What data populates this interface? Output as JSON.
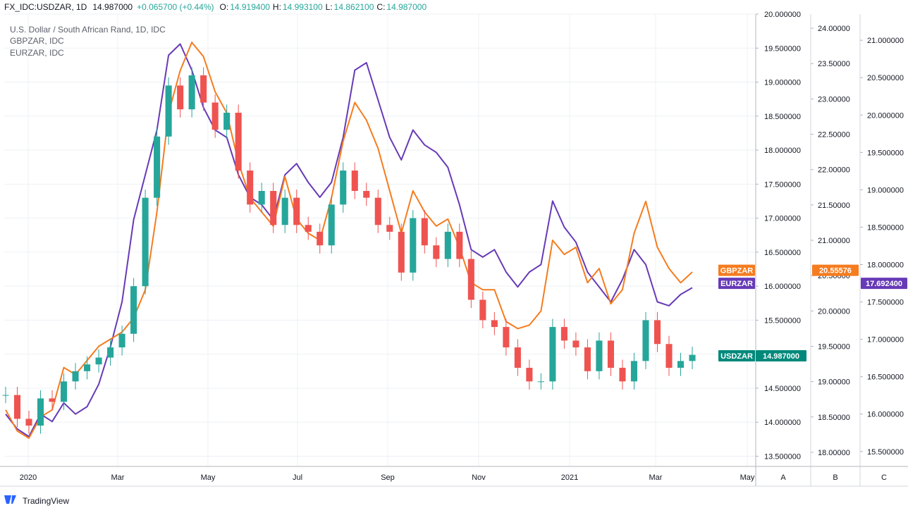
{
  "header": {
    "symbol": "FX_IDC:USDZAR, 1D",
    "last": "14.987000",
    "change": "+0.065700 (+0.44%)",
    "o_label": "O:",
    "o_value": "14.919400",
    "h_label": "H:",
    "h_value": "14.993100",
    "l_label": "L:",
    "l_value": "14.862100",
    "c_label": "C:",
    "c_value": "14.987000"
  },
  "legend": {
    "title": "U.S. Dollar / South African Rand, 1D, IDC",
    "series2": "GBPZAR, IDC",
    "series3": "EURZAR, IDC"
  },
  "footer": {
    "brand": "TradingView"
  },
  "colors": {
    "up": "#26a69a",
    "down": "#ef5350",
    "usd_badge": "#00897b",
    "gbp": "#f57c1f",
    "eur": "#673ab7",
    "grid": "#edf0f4",
    "axis_border": "#b2b5be",
    "header_up": "#26a69a"
  },
  "chart_data": {
    "type": "candlestick+line",
    "x_ticks": [
      "2020",
      "Mar",
      "May",
      "Jul",
      "Sep",
      "Nov",
      "2021",
      "Mar",
      "May"
    ],
    "axes": {
      "A": {
        "label": "A",
        "ticks": [
          "20.000000",
          "19.500000",
          "19.000000",
          "18.500000",
          "18.000000",
          "17.500000",
          "17.000000",
          "16.500000",
          "16.000000",
          "15.500000",
          "15.000000",
          "14.500000",
          "14.000000",
          "13.500000"
        ],
        "range": [
          13.35,
          20.0
        ]
      },
      "B": {
        "label": "B",
        "ticks": [
          "24.00000",
          "23.50000",
          "23.00000",
          "22.50000",
          "22.00000",
          "21.50000",
          "21.00000",
          "20.50000",
          "20.00000",
          "19.50000",
          "19.00000",
          "18.50000",
          "18.00000"
        ],
        "range": [
          17.8,
          24.2
        ]
      },
      "C": {
        "label": "C",
        "ticks": [
          "21.000000",
          "20.500000",
          "20.000000",
          "19.500000",
          "19.000000",
          "18.500000",
          "18.000000",
          "17.500000",
          "17.000000",
          "16.500000",
          "16.000000",
          "15.500000"
        ],
        "range": [
          15.3,
          21.35
        ]
      }
    },
    "series": [
      {
        "name": "USDZAR",
        "axis": "A",
        "style": "candles",
        "last": "14.987000",
        "values": [
          14.4,
          14.05,
          13.95,
          14.35,
          14.3,
          14.6,
          14.75,
          14.85,
          14.95,
          15.1,
          15.3,
          16.0,
          17.3,
          18.2,
          18.95,
          18.6,
          19.1,
          18.7,
          18.3,
          18.55,
          17.7,
          17.2,
          17.4,
          16.9,
          17.3,
          16.9,
          16.8,
          16.6,
          17.2,
          17.7,
          17.4,
          17.3,
          16.9,
          16.8,
          16.2,
          17.0,
          16.6,
          16.4,
          16.8,
          16.4,
          15.8,
          15.5,
          15.4,
          15.1,
          14.8,
          14.6,
          14.6,
          15.4,
          15.2,
          15.1,
          14.75,
          15.2,
          14.8,
          14.6,
          14.9,
          15.5,
          15.15,
          14.8,
          14.9,
          14.99
        ]
      },
      {
        "name": "GBPZAR",
        "axis": "B",
        "style": "line",
        "last": "20.55576",
        "values": [
          18.6,
          18.3,
          18.2,
          18.5,
          18.6,
          19.2,
          19.1,
          19.3,
          19.5,
          19.6,
          19.7,
          19.9,
          20.3,
          21.4,
          22.8,
          23.4,
          23.8,
          23.6,
          23.1,
          22.8,
          22.1,
          21.6,
          21.4,
          21.2,
          21.9,
          21.3,
          21.1,
          21.0,
          21.6,
          22.4,
          22.95,
          22.7,
          22.3,
          21.7,
          21.1,
          21.7,
          21.4,
          21.2,
          21.3,
          20.9,
          20.4,
          20.3,
          20.3,
          19.85,
          19.75,
          19.8,
          20.0,
          21.0,
          20.8,
          20.9,
          20.4,
          20.6,
          20.1,
          20.3,
          21.1,
          21.55,
          20.9,
          20.6,
          20.4,
          20.55
        ]
      },
      {
        "name": "EURZAR",
        "axis": "C",
        "style": "line",
        "last": "17.692400",
        "values": [
          16.0,
          15.8,
          15.7,
          16.0,
          15.9,
          16.15,
          16.0,
          16.1,
          16.4,
          16.9,
          17.5,
          18.6,
          19.2,
          19.8,
          20.8,
          20.95,
          20.6,
          20.1,
          19.8,
          19.7,
          19.2,
          18.9,
          18.8,
          18.6,
          19.2,
          19.35,
          19.1,
          18.9,
          19.1,
          19.7,
          20.6,
          20.7,
          20.2,
          19.7,
          19.4,
          19.8,
          19.6,
          19.5,
          19.3,
          18.8,
          18.2,
          18.1,
          18.2,
          17.9,
          17.7,
          17.9,
          18.0,
          18.85,
          18.5,
          18.3,
          17.9,
          17.7,
          17.5,
          17.8,
          18.2,
          18.0,
          17.5,
          17.45,
          17.6,
          17.69
        ]
      }
    ],
    "badges": [
      {
        "name": "GBPZAR",
        "value": "20.55576"
      },
      {
        "name": "EURZAR",
        "value": "17.692400"
      },
      {
        "name": "USDZAR",
        "value": "14.987000"
      }
    ]
  }
}
